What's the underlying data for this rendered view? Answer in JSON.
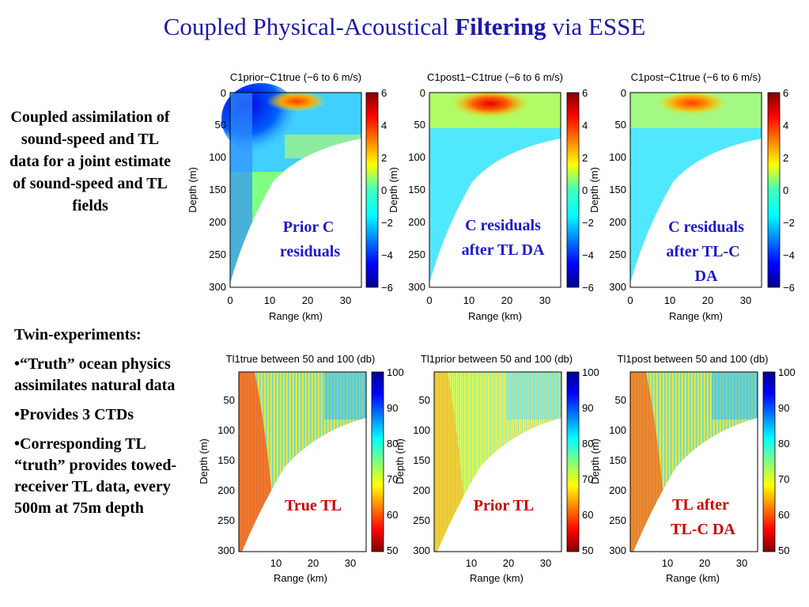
{
  "title": {
    "prefix": "Coupled Physical-Acoustical ",
    "bold": "Filtering",
    "suffix": " via ESSE"
  },
  "left_description": "Coupled assimilation of sound-speed and TL data for a joint estimate of sound-speed and TL fields",
  "twin": {
    "heading": "Twin-experiments:",
    "bullets": [
      "•“Truth” ocean physics assimilates natural data",
      "•Provides 3 CTDs",
      "•Corresponding TL “truth” provides towed-receiver TL data, every 500m at 75m depth"
    ]
  },
  "chart_data": [
    {
      "type": "heatmap",
      "title": "C1prior−C1true (−6 to 6 m/s)",
      "xlabel": "Range (km)",
      "ylabel": "Depth (m)",
      "x_ticks": [
        "0",
        "10",
        "20",
        "30"
      ],
      "y_ticks": [
        "0",
        "50",
        "100",
        "150",
        "200",
        "250",
        "300"
      ],
      "colorbar_ticks": [
        "6",
        "4",
        "2",
        "0",
        "−2",
        "−4",
        "−6"
      ],
      "clim": [
        -6,
        6
      ],
      "annotation": "Prior C residuals",
      "colormap": "jet"
    },
    {
      "type": "heatmap",
      "title": "C1post1−C1true (−6 to 6 m/s)",
      "xlabel": "Range (km)",
      "ylabel": "Depth (m)",
      "x_ticks": [
        "0",
        "10",
        "20",
        "30"
      ],
      "y_ticks": [
        "0",
        "50",
        "100",
        "150",
        "200",
        "250",
        "300"
      ],
      "colorbar_ticks": [
        "6",
        "4",
        "2",
        "0",
        "−2",
        "−4",
        "−6"
      ],
      "clim": [
        -6,
        6
      ],
      "annotation": "C residuals after TL DA",
      "colormap": "jet"
    },
    {
      "type": "heatmap",
      "title": "C1post−C1true (−6 to 6 m/s)",
      "xlabel": "Range (km)",
      "ylabel": "Depth (m)",
      "x_ticks": [
        "0",
        "10",
        "20",
        "30"
      ],
      "y_ticks": [
        "0",
        "50",
        "100",
        "150",
        "200",
        "250",
        "300"
      ],
      "colorbar_ticks": [
        "6",
        "4",
        "2",
        "0",
        "−2",
        "−4",
        "−6"
      ],
      "clim": [
        -6,
        6
      ],
      "annotation": "C residuals after TL-C DA",
      "colormap": "jet"
    },
    {
      "type": "heatmap",
      "title": "Tl1true between 50 and 100 (db)",
      "xlabel": "Range (km)",
      "ylabel": "Depth (m)",
      "x_ticks": [
        "10",
        "20",
        "30"
      ],
      "y_ticks": [
        "50",
        "100",
        "150",
        "200",
        "250",
        "300"
      ],
      "colorbar_ticks": [
        "100",
        "90",
        "80",
        "70",
        "60",
        "50"
      ],
      "clim": [
        50,
        100
      ],
      "annotation": "True TL",
      "colormap": "jet"
    },
    {
      "type": "heatmap",
      "title": "Tl1prior between 50 and 100 (db)",
      "xlabel": "Range (km)",
      "ylabel": "Depth (m)",
      "x_ticks": [
        "10",
        "20",
        "30"
      ],
      "y_ticks": [
        "50",
        "100",
        "150",
        "200",
        "250",
        "300"
      ],
      "colorbar_ticks": [
        "100",
        "90",
        "80",
        "70",
        "60",
        "50"
      ],
      "clim": [
        50,
        100
      ],
      "annotation": "Prior TL",
      "colormap": "jet"
    },
    {
      "type": "heatmap",
      "title": "Tl1post between 50 and 100 (db)",
      "xlabel": "Range (km)",
      "ylabel": "Depth (m)",
      "x_ticks": [
        "10",
        "20",
        "30"
      ],
      "y_ticks": [
        "50",
        "100",
        "150",
        "200",
        "250",
        "300"
      ],
      "colorbar_ticks": [
        "100",
        "90",
        "80",
        "70",
        "60",
        "50"
      ],
      "clim": [
        50,
        100
      ],
      "annotation": "TL after TL-C DA",
      "colormap": "jet"
    }
  ]
}
